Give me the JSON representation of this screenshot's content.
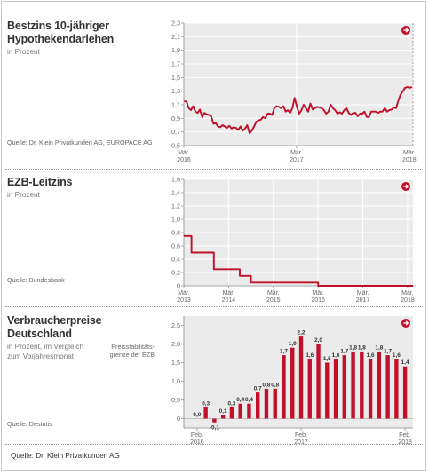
{
  "footer": {
    "source": "Quelle: Dr. Klein Privatkunden AG"
  },
  "panels": [
    {
      "title_line1": "Bestzins 10-jähriger",
      "title_line2": "Hypothekendarlehen",
      "subtitle_line1": "in Prozent",
      "subtitle_line2": "",
      "source": "Quelle: Dr. Klein Privatkunden AG, EUROPACE AG",
      "reference_note_line1": "",
      "reference_note_line2": ""
    },
    {
      "title_line1": "EZB-Leitzins",
      "title_line2": "",
      "subtitle_line1": "in Prozent",
      "subtitle_line2": "",
      "source": "Quelle: Bundesbank",
      "reference_note_line1": "",
      "reference_note_line2": ""
    },
    {
      "title_line1": "Verbraucherpreise",
      "title_line2": "Deutschland",
      "subtitle_line1": "in Prozent, im Vergleich",
      "subtitle_line2": "zum Vorjahresmonat",
      "source": "Quelle: Destatis",
      "reference_note_line1": "Preisstabilitäts-",
      "reference_note_line2": "grenze der EZB"
    }
  ],
  "chart_data": [
    {
      "type": "line",
      "title": "Bestzins 10-jähriger Hypothekendarlehen",
      "ylabel": "in Prozent",
      "ylim": [
        0.5,
        2.3
      ],
      "yticks": [
        0.5,
        0.7,
        0.9,
        1.1,
        1.3,
        1.5,
        1.7,
        1.9,
        2.1,
        2.3
      ],
      "ytick_labels": [
        "0,5",
        "0,7",
        "0,9",
        "1,1",
        "1,3",
        "1,5",
        "1,7",
        "1,9",
        "2,1",
        "2,3"
      ],
      "xlim": [
        2016.167,
        2018.2
      ],
      "xticks": [
        {
          "x": 2016.167,
          "label1": "Mär.",
          "label2": "2016"
        },
        {
          "x": 2017.167,
          "label1": "Mär.",
          "label2": "2017"
        },
        {
          "x": 2018.167,
          "label1": "Mär.",
          "label2": "2018"
        }
      ],
      "grid": true,
      "line_color": "#c0102a",
      "x": [
        2016.17,
        2016.19,
        2016.21,
        2016.23,
        2016.25,
        2016.27,
        2016.29,
        2016.31,
        2016.33,
        2016.35,
        2016.37,
        2016.39,
        2016.41,
        2016.43,
        2016.45,
        2016.47,
        2016.49,
        2016.51,
        2016.53,
        2016.55,
        2016.57,
        2016.59,
        2016.61,
        2016.63,
        2016.65,
        2016.67,
        2016.69,
        2016.71,
        2016.73,
        2016.75,
        2016.77,
        2016.79,
        2016.81,
        2016.83,
        2016.85,
        2016.87,
        2016.89,
        2016.91,
        2016.93,
        2016.95,
        2016.97,
        2016.99,
        2017.01,
        2017.03,
        2017.05,
        2017.07,
        2017.09,
        2017.11,
        2017.13,
        2017.15,
        2017.17,
        2017.19,
        2017.21,
        2017.23,
        2017.25,
        2017.27,
        2017.29,
        2017.31,
        2017.33,
        2017.35,
        2017.37,
        2017.39,
        2017.41,
        2017.43,
        2017.45,
        2017.47,
        2017.49,
        2017.51,
        2017.53,
        2017.55,
        2017.57,
        2017.59,
        2017.61,
        2017.63,
        2017.65,
        2017.67,
        2017.69,
        2017.71,
        2017.73,
        2017.75,
        2017.77,
        2017.79,
        2017.81,
        2017.83,
        2017.85,
        2017.87,
        2017.89,
        2017.91,
        2017.93,
        2017.95,
        2017.97,
        2017.99,
        2018.01,
        2018.03,
        2018.05,
        2018.07,
        2018.09,
        2018.11,
        2018.13,
        2018.15,
        2018.17,
        2018.19
      ],
      "y": [
        1.15,
        1.15,
        1.05,
        1.02,
        1.08,
        1.0,
        0.98,
        1.03,
        0.92,
        0.98,
        0.96,
        0.95,
        0.93,
        0.82,
        0.83,
        0.78,
        0.77,
        0.8,
        0.78,
        0.76,
        0.79,
        0.75,
        0.77,
        0.76,
        0.73,
        0.78,
        0.72,
        0.75,
        0.8,
        0.68,
        0.72,
        0.78,
        0.85,
        0.87,
        0.88,
        0.92,
        0.9,
        0.97,
        0.97,
        0.95,
        1.05,
        1.08,
        1.07,
        1.05,
        1.08,
        1.0,
        1.02,
        0.98,
        1.05,
        1.2,
        1.07,
        0.97,
        1.02,
        1.1,
        1.05,
        1.0,
        1.12,
        1.03,
        1.05,
        1.07,
        1.06,
        1.05,
        1.02,
        0.97,
        1.0,
        1.1,
        1.05,
        1.02,
        0.97,
        0.99,
        0.97,
        1.02,
        1.05,
        0.98,
        0.95,
        0.98,
        0.98,
        0.93,
        0.97,
        0.97,
        1.0,
        0.92,
        0.92,
        1.0,
        1.0,
        1.0,
        0.98,
        1.0,
        1.0,
        1.05,
        1.0,
        1.02,
        1.03,
        1.06,
        1.05,
        1.16,
        1.25,
        1.3,
        1.35,
        1.36,
        1.35,
        1.36
      ]
    },
    {
      "type": "line",
      "title": "EZB-Leitzins",
      "ylabel": "in Prozent",
      "ylim": [
        0,
        1.6
      ],
      "yticks": [
        0,
        0.2,
        0.4,
        0.6,
        0.8,
        1.0,
        1.2,
        1.4,
        1.6
      ],
      "ytick_labels": [
        "0",
        "0,2",
        "0,4",
        "0,6",
        "0,8",
        "1,0",
        "1,2",
        "1,4",
        "1,6"
      ],
      "xlim": [
        2013.0,
        2018.12
      ],
      "xticks": [
        {
          "x": 2013.0,
          "label1": "Mär.",
          "label2": "2013"
        },
        {
          "x": 2014.0,
          "label1": "Mär.",
          "label2": "2014"
        },
        {
          "x": 2015.0,
          "label1": "Mär.",
          "label2": "2015"
        },
        {
          "x": 2016.0,
          "label1": "Mär.",
          "label2": "2016"
        },
        {
          "x": 2017.0,
          "label1": "Mär.",
          "label2": "2017"
        },
        {
          "x": 2018.0,
          "label1": "Mär.",
          "label2": "2018"
        }
      ],
      "grid": true,
      "line_color": "#c0102a",
      "x": [
        2013.0,
        2013.17,
        2013.17,
        2013.67,
        2013.67,
        2014.25,
        2014.25,
        2014.5,
        2014.5,
        2016.0,
        2016.0,
        2018.12
      ],
      "y": [
        0.75,
        0.75,
        0.5,
        0.5,
        0.25,
        0.25,
        0.15,
        0.15,
        0.05,
        0.05,
        0.0,
        0.0
      ]
    },
    {
      "type": "bar",
      "title": "Verbraucherpreise Deutschland",
      "ylabel": "in Prozent, im Vergleich zum Vorjahresmonat",
      "ylim": [
        -0.25,
        2.75
      ],
      "yticks": [
        0,
        0.5,
        1.0,
        1.5,
        2.0,
        2.5
      ],
      "ytick_labels": [
        "0",
        "0,5",
        "1,0",
        "1,5",
        "2,0",
        "2,5"
      ],
      "reference_line": 2.0,
      "grid": false,
      "bar_color": "#c0102a",
      "xticks": [
        {
          "index": 0,
          "label1": "Feb.",
          "label2": "2016"
        },
        {
          "index": 12,
          "label1": "Feb.",
          "label2": "2017"
        },
        {
          "index": 24,
          "label1": "Feb.",
          "label2": "2018"
        }
      ],
      "values": [
        0.0,
        0.3,
        -0.1,
        0.1,
        0.3,
        0.4,
        0.4,
        0.7,
        0.8,
        0.8,
        1.7,
        1.9,
        2.2,
        1.6,
        2.0,
        1.5,
        1.6,
        1.7,
        1.8,
        1.8,
        1.6,
        1.8,
        1.7,
        1.6,
        1.4
      ],
      "value_labels": [
        "0,0",
        "0,3",
        "-0,1",
        "0,1",
        "0,3",
        "0,4",
        "0,4",
        "0,7",
        "0,8",
        "0,8",
        "1,7",
        "1,9",
        "2,2",
        "1,6",
        "2,0",
        "1,5",
        "1,6",
        "1,7",
        "1,8",
        "1,8",
        "1,6",
        "1,8",
        "1,7",
        "1,6",
        "1,4"
      ]
    }
  ]
}
